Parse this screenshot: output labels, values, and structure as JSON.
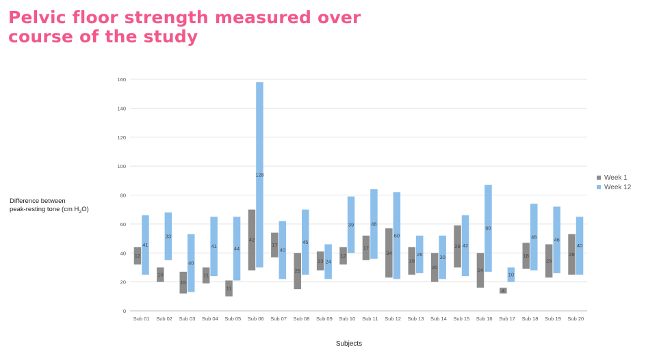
{
  "title": "Pelvic floor strength measured over course of the study",
  "chart_data": {
    "type": "bar",
    "subtype": "floating-range",
    "xlabel": "Subjects",
    "ylabel_line1": "Difference between",
    "ylabel_line2_pre": "peak-resting tone (cm H",
    "ylabel_sub": "2",
    "ylabel_line2_post": "O)",
    "ylim": [
      0,
      160
    ],
    "yticks": [
      0,
      20,
      40,
      60,
      80,
      100,
      120,
      140,
      160
    ],
    "grid": true,
    "legend_position": "right",
    "categories": [
      "Sub 01",
      "Sub 02",
      "Sub 03",
      "Sub 04",
      "Sub 05",
      "Sub 06",
      "Sub 07",
      "Sub 08",
      "Sub 09",
      "Sub 10",
      "Sub 11",
      "Sub 12",
      "Sub 13",
      "Sub 14",
      "Sub 15",
      "Sub 16",
      "Sub 17",
      "Sub 18",
      "Sub 19",
      "Sub 20"
    ],
    "series": [
      {
        "name": "Week 1",
        "color": "#8c8c8c",
        "low": [
          32,
          20,
          12,
          19,
          10,
          28,
          37,
          15,
          28,
          32,
          35,
          23,
          25,
          20,
          30,
          16,
          12,
          29,
          23,
          25
        ],
        "high": [
          44,
          30,
          27,
          30,
          21,
          70,
          54,
          40,
          41,
          44,
          52,
          57,
          44,
          40,
          59,
          40,
          16,
          47,
          46,
          53
        ],
        "labels": [
          "12",
          "10",
          "15",
          "11",
          "11",
          "42",
          "17",
          "25",
          "13",
          "12",
          "17",
          "34",
          "19",
          "20",
          "29",
          "24",
          "4",
          "18",
          "23",
          "28"
        ]
      },
      {
        "name": "Week 12",
        "color": "#8dbfeb",
        "low": [
          25,
          35,
          13,
          24,
          21,
          30,
          22,
          25,
          22,
          40,
          36,
          22,
          26,
          22,
          24,
          27,
          20,
          28,
          26,
          25
        ],
        "high": [
          66,
          68,
          53,
          65,
          65,
          158,
          62,
          70,
          46,
          79,
          84,
          82,
          52,
          52,
          66,
          87,
          30,
          74,
          72,
          65
        ],
        "labels": [
          "41",
          "33",
          "40",
          "41",
          "44",
          "128",
          "40",
          "45",
          "24",
          "39",
          "48",
          "60",
          "26",
          "30",
          "42",
          "60",
          "10",
          "46",
          "46",
          "40"
        ]
      }
    ]
  }
}
